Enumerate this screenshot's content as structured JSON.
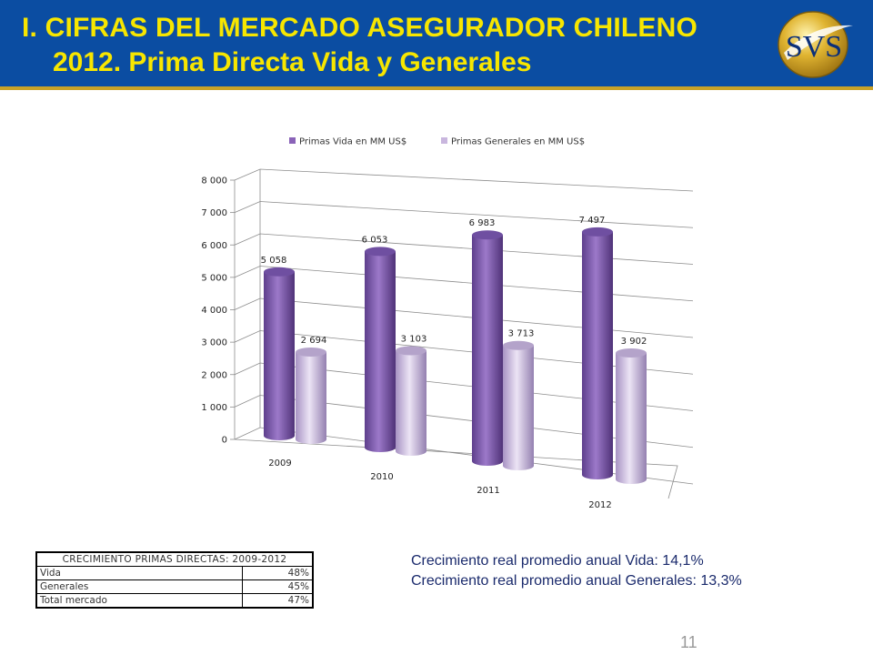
{
  "header": {
    "title_line1": "I.  CIFRAS DEL MERCADO ASEGURADOR CHILENO",
    "title_line2": "2012. Prima Directa Vida y Generales",
    "logo_text": "SVS",
    "bg_color": "#0b4da2",
    "title_color": "#f7e600",
    "accent_color": "#c9a227"
  },
  "chart_data": {
    "type": "bar",
    "categories": [
      "2009",
      "2010",
      "2011",
      "2012"
    ],
    "series": [
      {
        "name": "Primas Vida en MM US$",
        "values": [
          5058,
          6053,
          6983,
          7497
        ],
        "labels": [
          "5 058",
          "6 053",
          "6 983",
          "7 497"
        ],
        "color": "#8a63b8"
      },
      {
        "name": "Primas Generales en MM US$",
        "values": [
          2694,
          3103,
          3713,
          3902
        ],
        "labels": [
          "2 694",
          "3 103",
          "3 713",
          "3 902"
        ],
        "color": "#c9b6de"
      }
    ],
    "y_ticks": [
      0,
      1000,
      2000,
      3000,
      4000,
      5000,
      6000,
      7000,
      8000
    ],
    "y_tick_labels": [
      "0",
      "1 000",
      "2 000",
      "3 000",
      "4 000",
      "5 000",
      "6 000",
      "7 000",
      "8 000"
    ],
    "ylim": [
      0,
      8000
    ],
    "legend": "top",
    "grid": true,
    "style": "3d-cylinder"
  },
  "table": {
    "title": "CRECIMIENTO PRIMAS DIRECTAS: 2009-2012",
    "rows": [
      {
        "label": "Vida",
        "value": "48%"
      },
      {
        "label": "Generales",
        "value": "45%"
      },
      {
        "label": "Total mercado",
        "value": "47%"
      }
    ]
  },
  "notes": {
    "line1": "Crecimiento real promedio anual Vida: 14,1%",
    "line2": "Crecimiento real promedio anual Generales: 13,3%"
  },
  "page_number": "11"
}
